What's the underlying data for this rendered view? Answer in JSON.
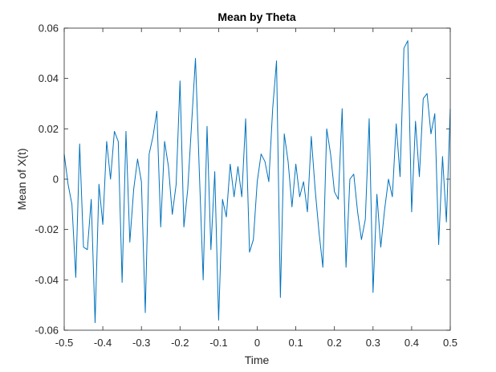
{
  "chart_data": {
    "type": "line",
    "title": "Mean by Theta",
    "xlabel": "Time",
    "ylabel": "Mean of X(t)",
    "xlim": [
      -0.5,
      0.5
    ],
    "ylim": [
      -0.06,
      0.06
    ],
    "grid": false,
    "legend": "none",
    "xticks": [
      -0.5,
      -0.4,
      -0.3,
      -0.2,
      -0.1,
      0,
      0.1,
      0.2,
      0.3,
      0.4,
      0.5
    ],
    "xtick_labels": [
      "-0.5",
      "-0.4",
      "-0.3",
      "-0.2",
      "-0.1",
      "0",
      "0.1",
      "0.2",
      "0.3",
      "0.4",
      "0.5"
    ],
    "yticks": [
      -0.06,
      -0.04,
      -0.02,
      0,
      0.02,
      0.04,
      0.06
    ],
    "ytick_labels": [
      "-0.06",
      "-0.04",
      "-0.02",
      "0",
      "0.02",
      "0.04",
      "0.06"
    ],
    "line_color": "#0072BD",
    "series": [
      {
        "x": [
          -0.5,
          -0.49,
          -0.48,
          -0.47,
          -0.46,
          -0.45,
          -0.44,
          -0.43,
          -0.42,
          -0.41,
          -0.4,
          -0.39,
          -0.38,
          -0.37,
          -0.36,
          -0.35,
          -0.34,
          -0.33,
          -0.32,
          -0.31,
          -0.3,
          -0.29,
          -0.28,
          -0.27,
          -0.26,
          -0.25,
          -0.24,
          -0.23,
          -0.22,
          -0.21,
          -0.2,
          -0.19,
          -0.18,
          -0.17,
          -0.16,
          -0.15,
          -0.14,
          -0.13,
          -0.12,
          -0.11,
          -0.1,
          -0.09,
          -0.08,
          -0.07,
          -0.06,
          -0.05,
          -0.04,
          -0.03,
          -0.02,
          -0.01,
          0,
          0.01,
          0.02,
          0.03,
          0.04,
          0.05,
          0.06,
          0.07,
          0.08,
          0.09,
          0.1,
          0.11,
          0.12,
          0.13,
          0.14,
          0.15,
          0.16,
          0.17,
          0.18,
          0.19,
          0.2,
          0.21,
          0.22,
          0.23,
          0.24,
          0.25,
          0.26,
          0.27,
          0.28,
          0.29,
          0.3,
          0.31,
          0.32,
          0.33,
          0.34,
          0.35,
          0.36,
          0.37,
          0.38,
          0.39,
          0.4,
          0.41,
          0.42,
          0.43,
          0.44,
          0.45,
          0.46,
          0.47,
          0.48,
          0.49,
          0.5
        ],
        "y": [
          0.01,
          -0.002,
          -0.01,
          -0.039,
          0.014,
          -0.027,
          -0.028,
          -0.008,
          -0.057,
          -0.002,
          -0.018,
          0.015,
          0.0,
          0.019,
          0.015,
          -0.041,
          0.019,
          -0.025,
          -0.004,
          0.008,
          -0.001,
          -0.053,
          0.01,
          0.017,
          0.027,
          -0.019,
          0.015,
          0.005,
          -0.014,
          -0.002,
          0.039,
          -0.019,
          -0.004,
          0.022,
          0.048,
          0.003,
          -0.04,
          0.021,
          -0.028,
          0.003,
          -0.056,
          -0.008,
          -0.015,
          0.006,
          -0.007,
          0.005,
          -0.007,
          0.024,
          -0.029,
          -0.024,
          -0.001,
          0.01,
          0.007,
          -0.001,
          0.028,
          0.047,
          -0.047,
          0.018,
          0.007,
          -0.011,
          0.006,
          -0.007,
          -0.001,
          -0.013,
          0.017,
          -0.004,
          -0.021,
          -0.035,
          0.02,
          0.01,
          -0.005,
          -0.008,
          0.028,
          -0.035,
          0.0,
          0.002,
          -0.013,
          -0.024,
          -0.016,
          0.024,
          -0.045,
          -0.006,
          -0.027,
          -0.012,
          0.0,
          -0.007,
          0.022,
          0.001,
          0.052,
          0.055,
          -0.013,
          0.023,
          0.001,
          0.032,
          0.034,
          0.018,
          0.026,
          -0.026,
          0.009,
          -0.017,
          0.028
        ]
      }
    ]
  }
}
